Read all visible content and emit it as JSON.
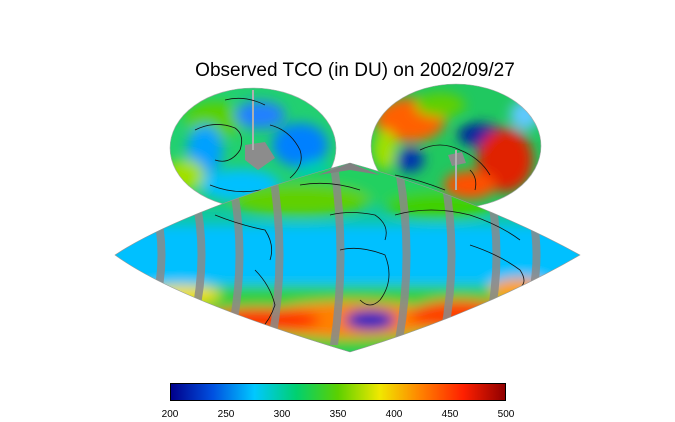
{
  "map": {
    "title": "Observed TCO (in DU) on 2002/09/27"
  },
  "colorbar": {
    "ticks": [
      "200",
      "250",
      "300",
      "350",
      "400",
      "450",
      "500"
    ],
    "min": 200,
    "max": 500,
    "colors": [
      "#00008b",
      "#0050e0",
      "#00c8ff",
      "#00d070",
      "#5cd000",
      "#f0e800",
      "#ff8000",
      "#ff2000",
      "#900000"
    ]
  }
}
